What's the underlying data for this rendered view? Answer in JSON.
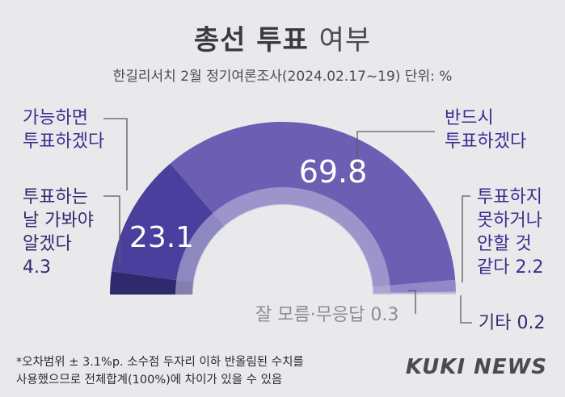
{
  "header": {
    "title_bold": "총선 투표",
    "title_light": "여부",
    "subtitle": "한길리서치 2월 정기여론조사(2024.02.17~19) 단위: %"
  },
  "chart_data": {
    "type": "pie",
    "style": "semicircle-donut",
    "title": "총선 투표 여부",
    "unit": "%",
    "slices": [
      {
        "label": "투표하는 날 가봐야 알겠다",
        "value": 4.3,
        "color": "#2f2a6d"
      },
      {
        "label": "가능하면 투표하겠다",
        "value": 23.1,
        "color": "#4a3f9c"
      },
      {
        "label": "반드시 투표하겠다",
        "value": 69.8,
        "color": "#6b5eb3"
      },
      {
        "label": "투표하지 못하거나 안할 것 같다",
        "value": 2.2,
        "color": "#9088c9"
      },
      {
        "label": "잘 모름·무응답",
        "value": 0.3,
        "color": "#b8b4dc"
      },
      {
        "label": "기타",
        "value": 0.2,
        "color": "#cfcce6"
      }
    ],
    "data_labels": {
      "value_69_8": "69.8",
      "value_23_1": "23.1"
    }
  },
  "labels": {
    "possible": "가능하면\n투표하겠다",
    "see_day": "투표하는\n날 가봐야\n알겠다\n4.3",
    "surely": "반드시\n투표하겠다",
    "cannot": "투표하지\n못하거나\n안할 것\n같다 2.2",
    "dontknow": "잘 모름·무응답 0.3",
    "other": "기타 0.2"
  },
  "footnote": "*오차범위 ± 3.1%p. 소수점 두자리 이하 반올림된 수치를\n 사용했으므로 전체합계(100%)에 차이가 있을 수 있음",
  "logo": "KUKI NEWS"
}
